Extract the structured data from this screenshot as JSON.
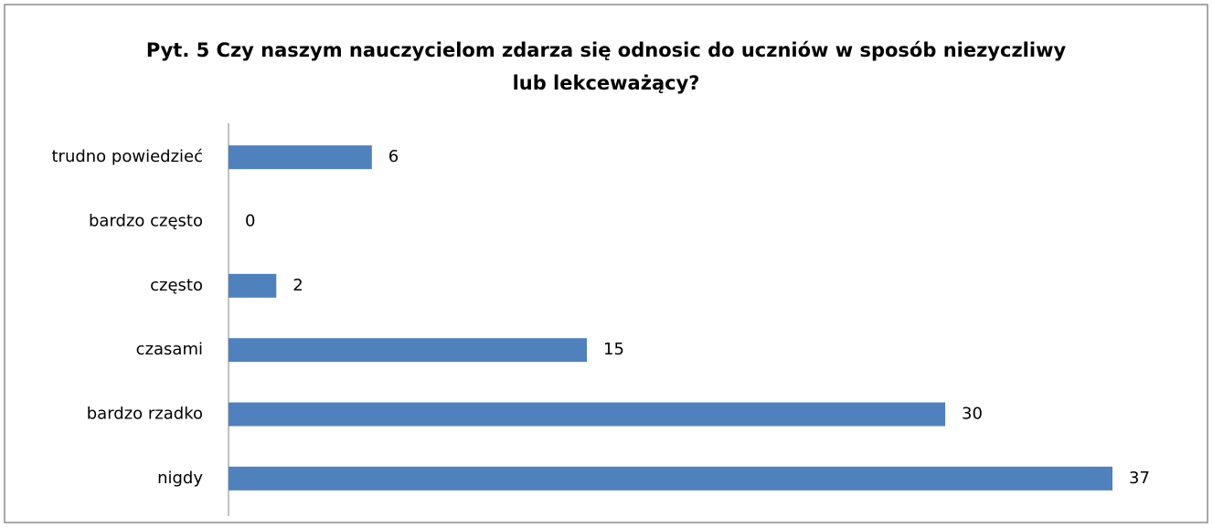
{
  "chart_data": {
    "type": "bar",
    "orientation": "horizontal",
    "title": [
      "Pyt. 5 Czy naszym nauczycielom zdarza się odnosic do uczniów w sposób niezyczliwy",
      "lub lekceważący?"
    ],
    "categories": [
      "trudno powiedzieć",
      "bardzo często",
      "często",
      "czasami",
      "bardzo rzadko",
      "nigdy"
    ],
    "values": [
      6,
      0,
      2,
      15,
      30,
      37
    ],
    "color": "#4f81bd"
  }
}
